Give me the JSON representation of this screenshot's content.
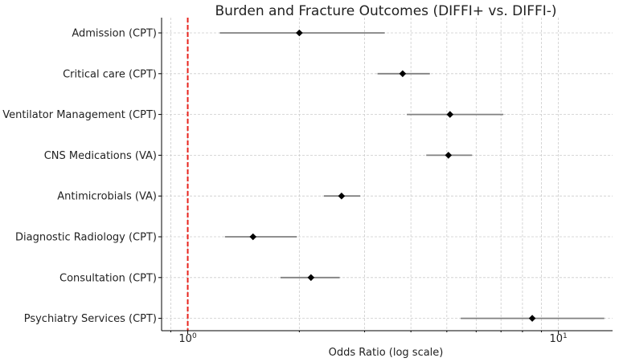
{
  "chart_data": {
    "type": "scatter",
    "title": "Burden and Fracture Outcomes (DIFFI+ vs. DIFFI-)",
    "xlabel": "Odds Ratio (log scale)",
    "ylabel": "",
    "x_scale": "log",
    "xlim": [
      0.85,
      14
    ],
    "x_major_ticks": [
      {
        "value": 1,
        "label": "10^0"
      },
      {
        "value": 10,
        "label": "10^1"
      }
    ],
    "reference_line": {
      "x": 1,
      "color": "#e8221c",
      "style": "dashed"
    },
    "grid": true,
    "categories": [
      "Admission (CPT)",
      "Critical care (CPT)",
      "Ventilator Management (CPT)",
      "CNS Medications (VA)",
      "Antimicrobials (VA)",
      "Diagnostic Radiology (CPT)",
      "Consultation (CPT)",
      "Psychiatry Services (CPT)"
    ],
    "series": [
      {
        "odds_ratio": [
          2.0,
          3.8,
          5.1,
          5.05,
          2.6,
          1.5,
          2.15,
          8.5
        ],
        "ci_lower": [
          1.22,
          3.25,
          3.9,
          4.4,
          2.33,
          1.26,
          1.78,
          5.45
        ],
        "ci_upper": [
          3.4,
          4.5,
          7.1,
          5.85,
          2.92,
          1.97,
          2.57,
          13.3
        ]
      }
    ],
    "colors": {
      "marker": "#000000",
      "ci_line": "#808080",
      "grid": "#cccccc",
      "axis": "#000000"
    }
  }
}
